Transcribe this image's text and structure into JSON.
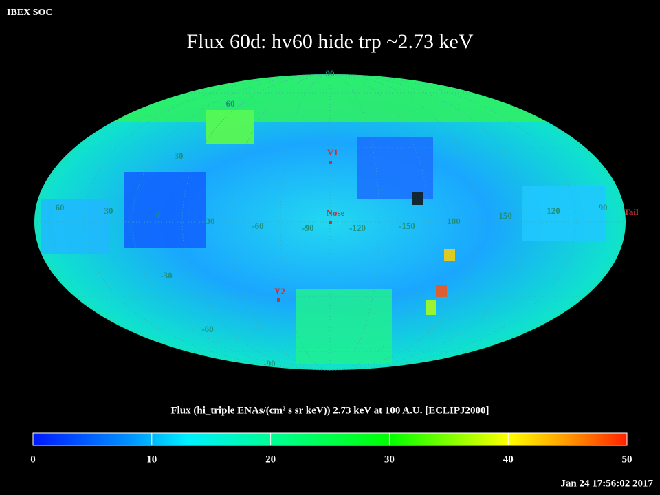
{
  "header": {
    "org": "IBEX SOC",
    "title": "Flux   60d: hv60 hide trp ~2.73 keV"
  },
  "map": {
    "labels": [
      "90",
      "60",
      "30",
      "V1",
      "60",
      "30",
      "0",
      "-30",
      "-60",
      "-90",
      "Nose",
      "-120",
      "-150",
      "180",
      "150",
      "120",
      "90",
      "Tail",
      "-30",
      "Y2",
      "-60",
      "-90"
    ]
  },
  "colorbar": {
    "title": "Flux (hi_triple ENAs/(cm² s sr keV))  2.73 keV at 100 A.U. [ECLIPJ2000]",
    "lim": [
      0,
      50
    ],
    "ticks": [
      0,
      10,
      20,
      30,
      40,
      50
    ]
  },
  "footer": {
    "timestamp": "Jan 24 17:56:02 2017"
  }
}
